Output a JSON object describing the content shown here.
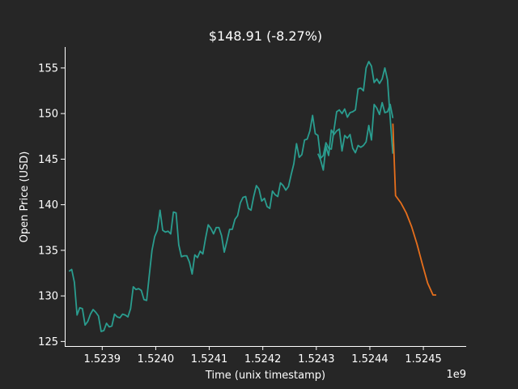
{
  "chart_data": {
    "type": "line",
    "title": "$148.91 (-8.27%)",
    "xlabel": "Time (unix timestamp)",
    "ylabel": "Open Price (USD)",
    "x_offset_label": "1e9",
    "xlim": [
      1.52383,
      1.52458
    ],
    "ylim": [
      124.5,
      157.3
    ],
    "x_ticks": [
      1.5239,
      1.524,
      1.5241,
      1.5242,
      1.5243,
      1.5244,
      1.5245
    ],
    "x_tick_labels": [
      "1.5239",
      "1.5240",
      "1.5241",
      "1.5242",
      "1.5243",
      "1.5244",
      "1.5245"
    ],
    "y_ticks": [
      125,
      130,
      135,
      140,
      145,
      150,
      155
    ],
    "y_tick_labels": [
      "125",
      "130",
      "135",
      "140",
      "145",
      "150",
      "155"
    ],
    "grid": false,
    "colors": {
      "background": "#262626",
      "history": "#2a9d8f",
      "forecast": "#e76f1c",
      "axis": "#ffffff"
    },
    "series": [
      {
        "key": "history",
        "x": [
          1.523838,
          1.523843,
          1.523848,
          1.523853,
          1.523858,
          1.523863,
          1.523868,
          1.523873,
          1.523878,
          1.523883,
          1.523888,
          1.523893,
          1.523898,
          1.523903,
          1.523908,
          1.523913,
          1.523918,
          1.523923,
          1.523928,
          1.523933,
          1.523938,
          1.523943,
          1.523948,
          1.523953,
          1.523958,
          1.523963,
          1.523968,
          1.523973,
          1.523978,
          1.523983,
          1.523988,
          1.523993,
          1.523998,
          1.524003,
          1.524008,
          1.524013,
          1.524018,
          1.524023,
          1.524028,
          1.524033,
          1.524038,
          1.524043,
          1.524048,
          1.524053,
          1.524058,
          1.524063,
          1.524068,
          1.524073,
          1.524078,
          1.524083,
          1.524088,
          1.524093,
          1.524098,
          1.524103,
          1.524108,
          1.524113,
          1.524118,
          1.524123,
          1.524128,
          1.524133,
          1.524138,
          1.524143,
          1.524148,
          1.524153,
          1.524158,
          1.524163,
          1.524168,
          1.524173,
          1.524178,
          1.524183,
          1.524188,
          1.524193,
          1.524198,
          1.524203,
          1.524208,
          1.524213,
          1.524218,
          1.524223,
          1.524228,
          1.524233,
          1.524238,
          1.524243,
          1.524248,
          1.524253,
          1.524258,
          1.524263,
          1.524268,
          1.524273,
          1.524278,
          1.524283,
          1.524288,
          1.524293,
          1.524298,
          1.524303,
          1.524308,
          1.524313,
          1.524318,
          1.524323,
          1.524328,
          1.524333,
          1.524338,
          1.524343,
          1.524348,
          1.524353,
          1.524358,
          1.524363,
          1.524368,
          1.524373,
          1.524378,
          1.524383,
          1.524388,
          1.524393,
          1.524398,
          1.524403,
          1.524408,
          1.524413,
          1.524418,
          1.524423,
          1.524428,
          1.524433,
          1.524438,
          1.524443
        ],
        "values": [
          132.7,
          132.9,
          131.5,
          127.9,
          128.7,
          128.6,
          126.8,
          127.2,
          128.0,
          128.5,
          128.2,
          127.8,
          126.1,
          126.2,
          127.0,
          126.6,
          126.7,
          128.0,
          127.7,
          127.6,
          128.0,
          127.9,
          127.7,
          128.6,
          131.0,
          130.7,
          130.8,
          130.6,
          129.6,
          129.5,
          132.3,
          135.0,
          136.5,
          137.2,
          139.4,
          137.2,
          137.0,
          137.1,
          136.8,
          139.2,
          139.1,
          135.6,
          134.3,
          134.4,
          134.4,
          133.7,
          132.4,
          134.5,
          134.2,
          134.9,
          134.6,
          136.3,
          137.8,
          137.4,
          136.8,
          137.5,
          137.5,
          136.6,
          134.8,
          136.0,
          137.3,
          137.3,
          138.4,
          138.8,
          140.2,
          140.8,
          140.9,
          139.6,
          139.4,
          140.9,
          142.1,
          141.7,
          140.4,
          140.7,
          139.8,
          139.6,
          141.5,
          141.1,
          140.9,
          142.4,
          142.1,
          141.6,
          142.0,
          143.3,
          144.5,
          146.7,
          145.2,
          145.5,
          147.1,
          147.2,
          148.1,
          149.8,
          147.8,
          147.6,
          145.1,
          145.4,
          146.8,
          146.2,
          146.1,
          148.2,
          150.2,
          150.4,
          150.0,
          150.5,
          149.6,
          150.1,
          150.2,
          150.4,
          152.7,
          152.8,
          152.5,
          155.0,
          155.7,
          155.2,
          153.4,
          153.8,
          153.3,
          153.8,
          155.0,
          153.7,
          149.5,
          145.6
        ],
        "line_style": "solid"
      },
      {
        "key": "history_tail",
        "x": [
          1.524303,
          1.524308,
          1.524313,
          1.524318,
          1.524323,
          1.524328,
          1.524333,
          1.524338,
          1.524343,
          1.524348,
          1.524353,
          1.524358,
          1.524363,
          1.524368,
          1.524373,
          1.524378,
          1.524383,
          1.524388,
          1.524393,
          1.524398,
          1.524403,
          1.524408,
          1.524413,
          1.524418,
          1.524423,
          1.524428,
          1.524433,
          1.524438,
          1.524443
        ],
        "values": [
          145.6,
          144.9,
          143.8,
          146.4,
          145.4,
          148.2,
          147.7,
          148.1,
          148.3,
          145.9,
          147.6,
          147.3,
          147.7,
          146.2,
          145.7,
          146.5,
          146.3,
          146.5,
          146.9,
          148.7,
          147.1,
          151.0,
          150.6,
          149.9,
          151.2,
          150.1,
          150.2,
          151.0,
          149.5
        ],
        "line_style": "solid"
      },
      {
        "key": "forecast",
        "x": [
          1.524443,
          1.524448,
          1.524458,
          1.524468,
          1.524478,
          1.524488,
          1.524498,
          1.524508,
          1.524518,
          1.524524
        ],
        "values": [
          148.9,
          141.0,
          140.2,
          139.1,
          137.6,
          135.7,
          133.5,
          131.4,
          130.1,
          130.1
        ],
        "line_style": "solid"
      }
    ]
  }
}
